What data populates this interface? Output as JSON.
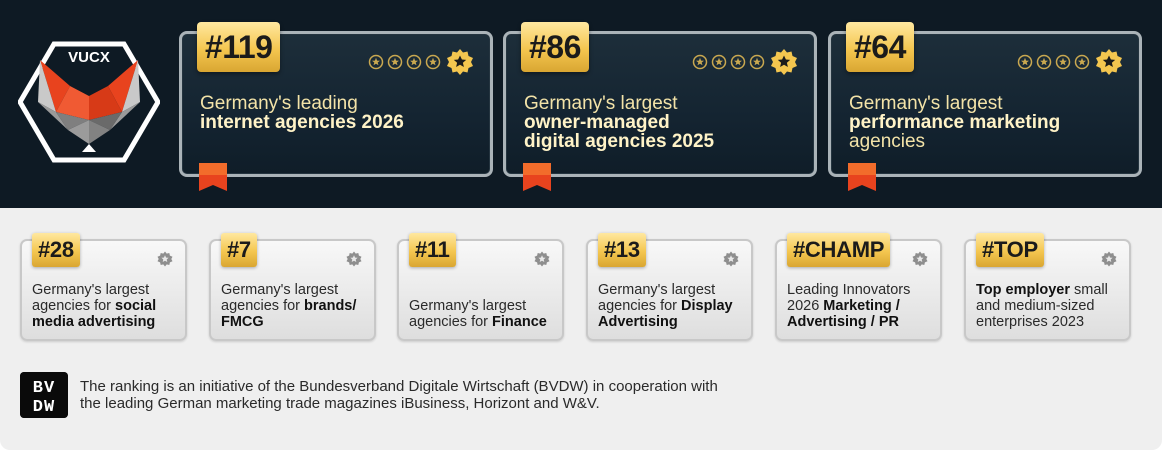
{
  "brand": {
    "logo_text": "VUCX"
  },
  "rankings_top": [
    {
      "rank": "#119",
      "line1": "Germany's leading",
      "bold": "internet agencies 2026",
      "after": ""
    },
    {
      "rank": "#86",
      "line1": "Germany's largest",
      "bold": "owner-managed digital agencies 2025",
      "after": ""
    },
    {
      "rank": "#64",
      "line1": "Germany's largest",
      "bold": "performance marketing",
      "after": "agencies"
    }
  ],
  "rankings_bottom": [
    {
      "rank": "#28",
      "text": "Germany's largest agencies for ",
      "bold": "social media advertising",
      "after": ""
    },
    {
      "rank": "#7",
      "text": "Germany's largest agencies for ",
      "bold": "brands/ FMCG",
      "after": ""
    },
    {
      "rank": "#11",
      "text": "Germany's largest agencies for ",
      "bold": "Finance",
      "after": ""
    },
    {
      "rank": "#13",
      "text": "Germany's largest agencies for ",
      "bold": "Display Advertising",
      "after": ""
    },
    {
      "rank": "#CHAMP",
      "text": "Leading Innovators 2026 ",
      "bold": "Marketing / Advertising / PR",
      "after": ""
    },
    {
      "rank": "#TOP",
      "text": "",
      "bold": "Top employer",
      "after": " small and medium-sized enterprises 2023"
    }
  ],
  "footer": {
    "logo_text": "BVDW",
    "text": "The ranking is an initiative of the Bundesverband Digitale Wirtschaft (BVDW) in cooperation with the leading German marketing trade magazines iBusiness, Horizont and W&V."
  },
  "colors": {
    "dark_bg": "#0e1a24",
    "gold": "#f4c64f",
    "light_bg": "#efefef",
    "bookmark": "#e8431e"
  }
}
